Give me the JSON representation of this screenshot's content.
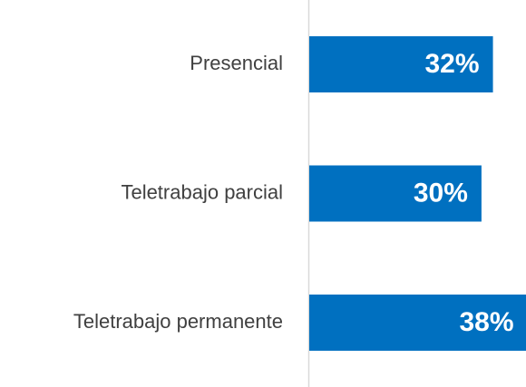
{
  "chart_data": {
    "type": "bar",
    "orientation": "horizontal",
    "categories": [
      "Presencial",
      "Teletrabajo parcial",
      "Teletrabajo permanente"
    ],
    "values": [
      32,
      30,
      38
    ],
    "value_labels": [
      "32%",
      "30%",
      "38%"
    ],
    "color": "#0070c0"
  }
}
